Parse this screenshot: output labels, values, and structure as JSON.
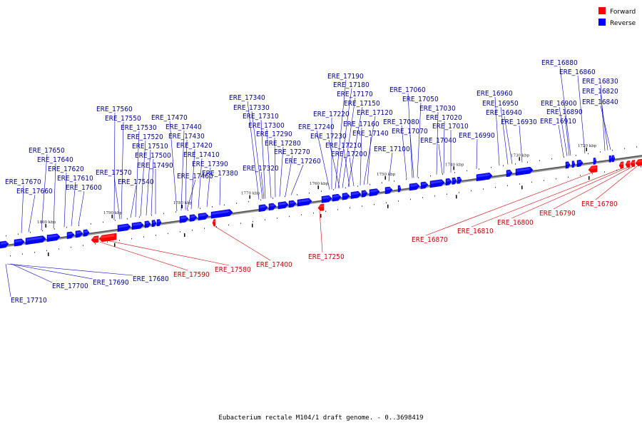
{
  "colors": {
    "forward": "#ff0000",
    "reverse": "#0000ff",
    "label_forward": "#cc0000",
    "label_reverse": "#000099",
    "axis": "#777777"
  },
  "legend": [
    {
      "label": "Forward",
      "color": "#ff0000"
    },
    {
      "label": "Reverse",
      "color": "#0000ff"
    }
  ],
  "caption": "Eubacterium rectale M104/1 draft genome. - 0..3698419",
  "axis": {
    "ticks": [
      "1800 kbp",
      "1790 kbp",
      "1780 kbp",
      "1770 kbp",
      "1760 kbp",
      "1750 kbp",
      "1740 kbp",
      "1730 kbp",
      "1720 kbp"
    ]
  },
  "reverse_labels_top": [
    "ERE_17670",
    "ERE_17660",
    "ERE_17650",
    "ERE_17640",
    "ERE_17620",
    "ERE_17610",
    "ERE_17600",
    "ERE_17570",
    "ERE_17540",
    "ERE_17560",
    "ERE_17550",
    "ERE_17530",
    "ERE_17520",
    "ERE_17510",
    "ERE_17500",
    "ERE_17490",
    "ERE_17470",
    "ERE_17440",
    "ERE_17430",
    "ERE_17420",
    "ERE_17410",
    "ERE_17390",
    "ERE_17380",
    "ERE_17460",
    "ERE_17340",
    "ERE_17330",
    "ERE_17310",
    "ERE_17300",
    "ERE_17290",
    "ERE_17280",
    "ERE_17270",
    "ERE_17260",
    "ERE_17320",
    "ERE_17190",
    "ERE_17180",
    "ERE_17170",
    "ERE_17150",
    "ERE_17120",
    "ERE_17160",
    "ERE_17140",
    "ERE_17220",
    "ERE_17240",
    "ERE_17230",
    "ERE_17210",
    "ERE_17200",
    "ERE_17100",
    "ERE_17060",
    "ERE_17050",
    "ERE_17030",
    "ERE_17020",
    "ERE_17010",
    "ERE_17080",
    "ERE_17070",
    "ERE_17040",
    "ERE_16960",
    "ERE_16950",
    "ERE_16940",
    "ERE_16930",
    "ERE_16990",
    "ERE_16880",
    "ERE_16860",
    "ERE_16830",
    "ERE_16820",
    "ERE_16840",
    "ERE_16900",
    "ERE_16890",
    "ERE_16910"
  ],
  "reverse_labels_bottom": [
    "ERE_17680",
    "ERE_17690",
    "ERE_17700",
    "ERE_17710"
  ],
  "forward_labels": [
    "ERE_17590",
    "ERE_17580",
    "ERE_17400",
    "ERE_17250",
    "ERE_16870",
    "ERE_16810",
    "ERE_16800",
    "ERE_16790",
    "ERE_16780"
  ]
}
